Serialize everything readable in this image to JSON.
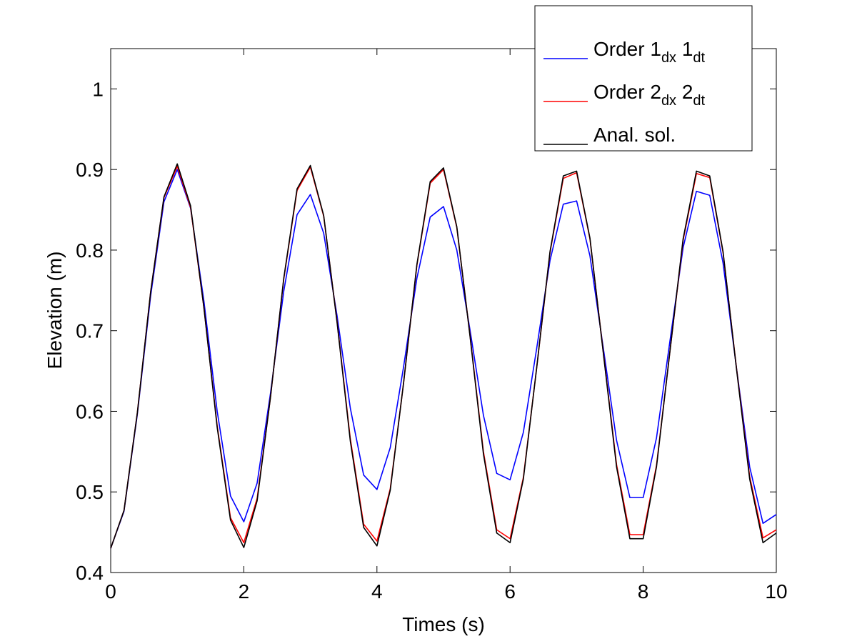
{
  "chart_data": {
    "type": "line",
    "xlabel": "Times (s)",
    "ylabel": "Elevation (m)",
    "x": [
      0,
      0.2,
      0.4,
      0.6,
      0.8,
      1,
      1.2,
      1.4,
      1.6,
      1.8,
      2,
      2.2,
      2.4,
      2.6,
      2.8,
      3,
      3.2,
      3.4,
      3.6,
      3.8,
      4,
      4.2,
      4.4,
      4.6,
      4.8,
      5,
      5.2,
      5.4,
      5.6,
      5.8,
      6,
      6.2,
      6.4,
      6.6,
      6.8,
      7,
      7.2,
      7.4,
      7.6,
      7.8,
      8,
      8.2,
      8.4,
      8.6,
      8.8,
      9,
      9.2,
      9.4,
      9.6,
      9.8,
      10
    ],
    "series": [
      {
        "name": "Order 1dx 1dt",
        "color": "#0000ff",
        "values": [
          0.43,
          0.476,
          0.596,
          0.743,
          0.86,
          0.9,
          0.852,
          0.737,
          0.6,
          0.495,
          0.463,
          0.511,
          0.622,
          0.749,
          0.844,
          0.869,
          0.821,
          0.719,
          0.604,
          0.521,
          0.503,
          0.555,
          0.655,
          0.765,
          0.841,
          0.854,
          0.8,
          0.7,
          0.595,
          0.523,
          0.515,
          0.574,
          0.678,
          0.787,
          0.857,
          0.861,
          0.793,
          0.679,
          0.564,
          0.493,
          0.493,
          0.567,
          0.686,
          0.803,
          0.873,
          0.868,
          0.784,
          0.655,
          0.531,
          0.461,
          0.472
        ]
      },
      {
        "name": "Order 2dx 2dt",
        "color": "#ff0000",
        "values": [
          0.43,
          0.477,
          0.598,
          0.748,
          0.865,
          0.904,
          0.853,
          0.729,
          0.582,
          0.468,
          0.437,
          0.492,
          0.617,
          0.764,
          0.874,
          0.903,
          0.842,
          0.712,
          0.566,
          0.46,
          0.439,
          0.504,
          0.635,
          0.781,
          0.883,
          0.9,
          0.828,
          0.693,
          0.55,
          0.453,
          0.442,
          0.518,
          0.654,
          0.797,
          0.889,
          0.896,
          0.814,
          0.674,
          0.534,
          0.447,
          0.447,
          0.533,
          0.673,
          0.812,
          0.895,
          0.89,
          0.797,
          0.655,
          0.519,
          0.443,
          0.453
        ]
      },
      {
        "name": "Anal. sol.",
        "color": "#000000",
        "values": [
          0.43,
          0.477,
          0.598,
          0.748,
          0.866,
          0.907,
          0.855,
          0.729,
          0.58,
          0.465,
          0.431,
          0.489,
          0.617,
          0.765,
          0.876,
          0.905,
          0.843,
          0.711,
          0.563,
          0.456,
          0.433,
          0.502,
          0.635,
          0.782,
          0.885,
          0.902,
          0.829,
          0.692,
          0.547,
          0.449,
          0.437,
          0.516,
          0.654,
          0.798,
          0.892,
          0.898,
          0.815,
          0.673,
          0.531,
          0.442,
          0.442,
          0.531,
          0.673,
          0.814,
          0.898,
          0.892,
          0.798,
          0.654,
          0.516,
          0.437,
          0.449
        ]
      }
    ],
    "xlim": [
      0,
      10
    ],
    "xticks": [
      0,
      2,
      4,
      6,
      8,
      10
    ],
    "ylim": [
      0.4,
      1.05
    ],
    "yticks": [
      0.4,
      0.5,
      0.6,
      0.7,
      0.8,
      0.9,
      1
    ],
    "legend": "northeast",
    "grid": false
  }
}
